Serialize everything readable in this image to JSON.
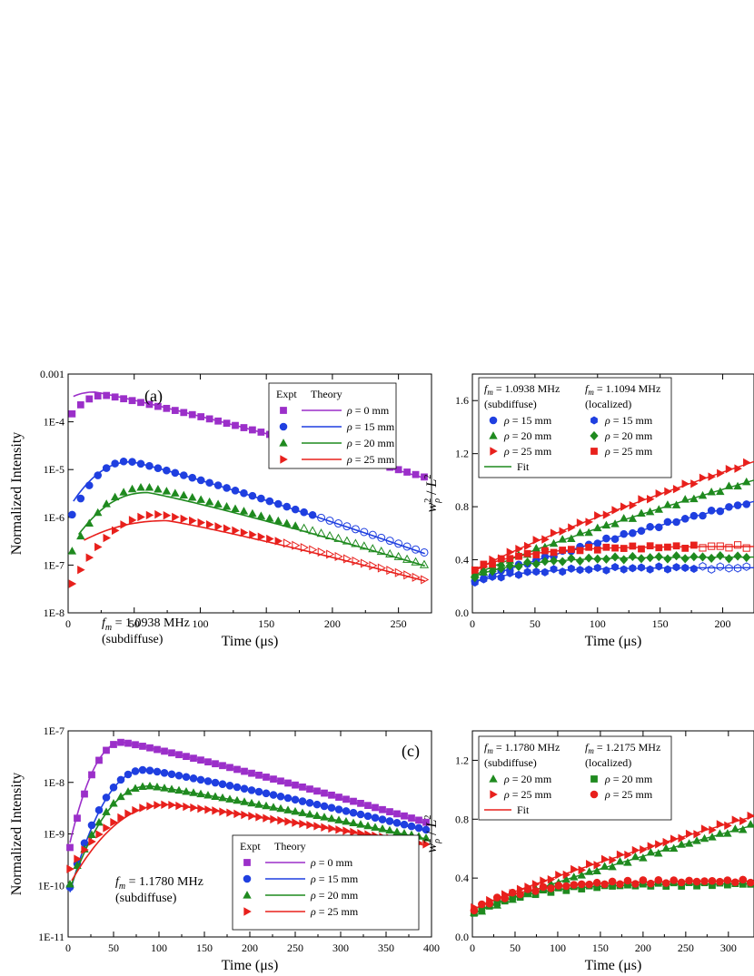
{
  "chart_data": [
    {
      "type": "scatter",
      "panel": "a",
      "panel_label": "(a)",
      "xlabel": "Time (μs)",
      "ylabel": "Normalized Intensity",
      "yscale": "log",
      "xlim": [
        0,
        275
      ],
      "ylim": [
        1e-08,
        0.001
      ],
      "xticks": [
        0,
        50,
        100,
        150,
        200,
        250
      ],
      "yticks": [
        "1E-8",
        "1E-7",
        "1E-6",
        "1E-5",
        "1E-4",
        "0.001"
      ],
      "annotation": [
        "f_m = 1.0938 MHz",
        "(subdiffuse)"
      ],
      "legend_header": [
        "Expt",
        "Theory"
      ],
      "series": [
        {
          "name": "ρ = 0 mm",
          "color": "#9b2fc9",
          "marker": "square",
          "expt_peak_t": 28,
          "expt_peak": 0.00036,
          "theory_peak_t": 20,
          "theory_peak": 0.00042,
          "end_value": 6.5e-06
        },
        {
          "name": "ρ = 15 mm",
          "color": "#1f3fe0",
          "marker": "circle",
          "expt_peak_t": 46,
          "expt_peak": 1.5e-05,
          "theory_peak_t": 48,
          "theory_peak": 1.45e-05,
          "end_value": 1.7e-07
        },
        {
          "name": "ρ = 20 mm",
          "color": "#1f8a1f",
          "marker": "triangle-up",
          "expt_peak_t": 60,
          "expt_peak": 4.3e-06,
          "theory_peak_t": 60,
          "theory_peak": 3.3e-06,
          "end_value": 9.5e-08
        },
        {
          "name": "ρ = 25 mm",
          "color": "#e8201c",
          "marker": "triangle-right",
          "expt_peak_t": 70,
          "expt_peak": 1.15e-06,
          "theory_peak_t": 75,
          "theory_peak": 8.5e-07,
          "end_value": 4.6e-08
        }
      ]
    },
    {
      "type": "scatter",
      "panel": "b",
      "xlabel": "Time (μs)",
      "ylabel": "w_ρ^2 / L^2",
      "xlim": [
        0,
        225
      ],
      "ylim": [
        0,
        1.8
      ],
      "xticks": [
        0,
        50,
        100,
        150,
        200
      ],
      "yticks": [
        "0.0",
        "0.4",
        "0.8",
        "1.2",
        "1.6"
      ],
      "legend_headers": [
        "f_m = 1.0938 MHz",
        "(subdiffuse)",
        "f_m = 1.1094 MHz",
        "(localized)"
      ],
      "fit_label": "Fit",
      "series": [
        {
          "name": "ρ = 15 mm",
          "regime": "subdiffuse",
          "color": "#1f3fe0",
          "marker": "circle",
          "start": 0.22,
          "end": 0.84
        },
        {
          "name": "ρ = 20 mm",
          "regime": "subdiffuse",
          "color": "#1f8a1f",
          "marker": "triangle-up",
          "start": 0.27,
          "end": 1.0
        },
        {
          "name": "ρ = 25 mm",
          "regime": "subdiffuse",
          "color": "#e8201c",
          "marker": "triangle-right",
          "start": 0.3,
          "end": 1.14
        },
        {
          "name": "ρ = 15 mm",
          "regime": "localized",
          "color": "#1f3fe0",
          "marker": "hexagon",
          "start": 0.23,
          "end": 0.34
        },
        {
          "name": "ρ = 20 mm",
          "regime": "localized",
          "color": "#1f8a1f",
          "marker": "diamond",
          "start": 0.27,
          "end": 0.42
        },
        {
          "name": "ρ = 25 mm",
          "regime": "localized",
          "color": "#e8201c",
          "marker": "square",
          "start": 0.32,
          "end": 0.5
        }
      ]
    },
    {
      "type": "scatter",
      "panel": "c",
      "panel_label": "(c)",
      "xlabel": "Time (μs)",
      "ylabel": "Normalized Intensity",
      "yscale": "log",
      "xlim": [
        0,
        400
      ],
      "ylim": [
        1e-11,
        1e-07
      ],
      "xticks": [
        0,
        50,
        100,
        150,
        200,
        250,
        300,
        350,
        400
      ],
      "yticks": [
        "1E-11",
        "1E-10",
        "1E-9",
        "1E-8",
        "1E-7"
      ],
      "annotation": [
        "f_m = 1.1780 MHz",
        "(subdiffuse)"
      ],
      "legend_header": [
        "Expt",
        "Theory"
      ],
      "series": [
        {
          "name": "ρ = 0 mm",
          "color": "#9b2fc9",
          "marker": "square",
          "peak_t": 60,
          "peak": 6e-08,
          "end_value": 1.6e-09
        },
        {
          "name": "ρ = 15 mm",
          "color": "#1f3fe0",
          "marker": "circle",
          "peak_t": 85,
          "peak": 1.75e-08,
          "end_value": 1.15e-09
        },
        {
          "name": "ρ = 20 mm",
          "color": "#1f8a1f",
          "marker": "triangle-up",
          "peak_t": 90,
          "peak": 8.5e-09,
          "end_value": 8e-10
        },
        {
          "name": "ρ = 25 mm",
          "color": "#e8201c",
          "marker": "triangle-right",
          "peak_t": 110,
          "peak": 3.7e-09,
          "end_value": 6e-10
        }
      ]
    },
    {
      "type": "scatter",
      "panel": "d",
      "xlabel": "Time (μs)",
      "ylabel": "w_ρ^2 / L^2",
      "xlim": [
        0,
        330
      ],
      "ylim": [
        0,
        1.4
      ],
      "xticks": [
        0,
        50,
        100,
        150,
        200,
        250,
        300
      ],
      "yticks": [
        "0.0",
        "0.4",
        "0.8",
        "1.2"
      ],
      "legend_headers": [
        "f_m = 1.1780 MHz",
        "(subdiffuse)",
        "f_m = 1.2175 MHz",
        "(localized)"
      ],
      "fit_label": "Fit",
      "series": [
        {
          "name": "ρ = 20 mm",
          "regime": "subdiffuse",
          "color": "#1f8a1f",
          "marker": "triangle-up",
          "start": 0.15,
          "end": 0.76
        },
        {
          "name": "ρ = 25 mm",
          "regime": "subdiffuse",
          "color": "#e8201c",
          "marker": "triangle-right",
          "start": 0.18,
          "end": 0.82
        },
        {
          "name": "ρ = 20 mm",
          "regime": "localized",
          "color": "#1f8a1f",
          "marker": "square",
          "start": 0.15,
          "end": 0.36
        },
        {
          "name": "ρ = 25 mm",
          "regime": "localized",
          "color": "#e8201c",
          "marker": "circle",
          "start": 0.18,
          "end": 0.38
        }
      ]
    }
  ]
}
